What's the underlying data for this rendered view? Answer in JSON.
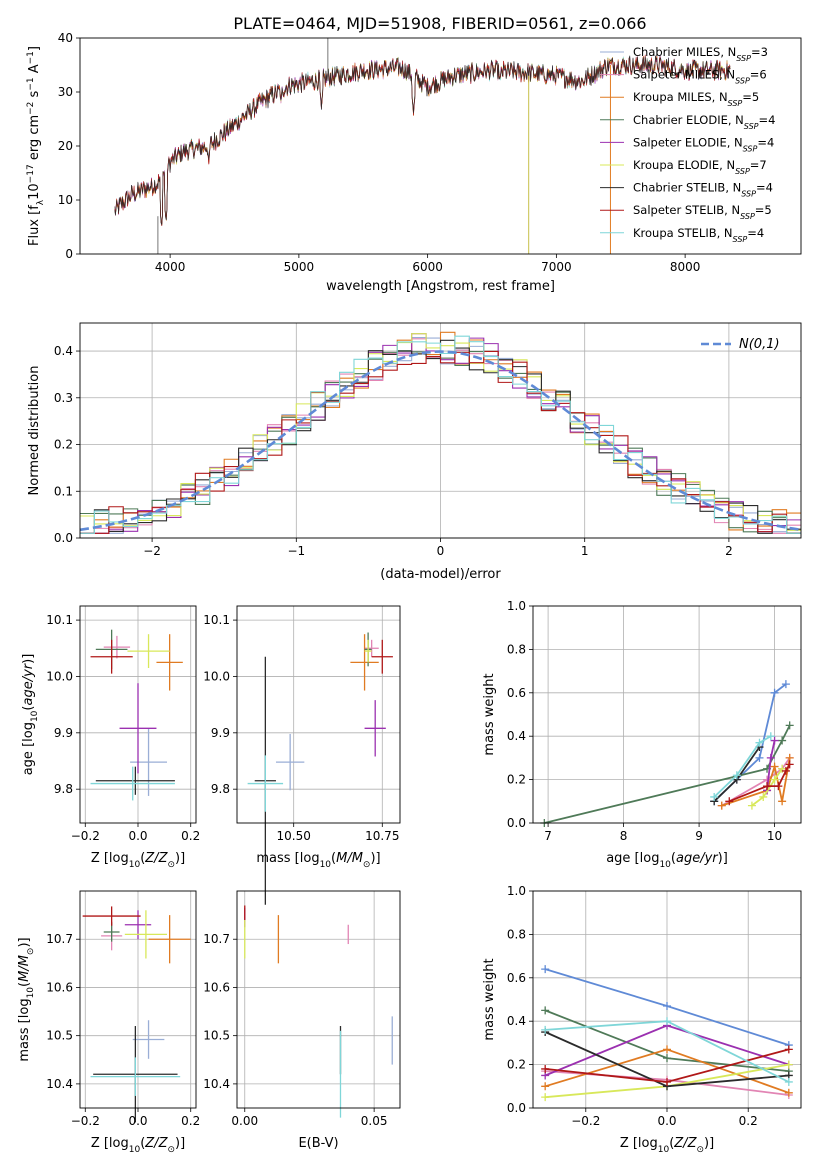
{
  "title": "PLATE=0464, MJD=51908, FIBERID=0561, z=0.066",
  "colors": {
    "Chabrier MILES": "#9aaed6",
    "Salpeter MILES": "#e285b4",
    "Kroupa MILES": "#e07b22",
    "Chabrier ELODIE": "#4f7a58",
    "Salpeter ELODIE": "#9b30b0",
    "Kroupa ELODIE": "#d8e85a",
    "Chabrier STELIB": "#2b2b2b",
    "Salpeter STELIB": "#b01818",
    "Kroupa STELIB": "#7fd6d8",
    "normal_curve": "#5f8ad6",
    "summary_line_blue": "#5f8ad6",
    "summary_line_green": "#4f7a58"
  },
  "chart_data": [
    {
      "id": "spectrum",
      "type": "line",
      "xlabel": "wavelength [Angstrom, rest frame]",
      "ylabel": "Flux [f_λ 10^-17 erg cm^-2 s^-1 A^-1]",
      "xlim": [
        3300,
        8900
      ],
      "ylim": [
        0,
        40
      ],
      "xticks": [
        4000,
        5000,
        6000,
        7000,
        8000
      ],
      "yticks": [
        0,
        10,
        20,
        30,
        40
      ],
      "legend_position": "top-right",
      "legend": [
        {
          "name": "Chabrier MILES",
          "nssp": "3"
        },
        {
          "name": "Salpeter MILES",
          "nssp": "6"
        },
        {
          "name": "Kroupa MILES",
          "nssp": "5"
        },
        {
          "name": "Chabrier ELODIE",
          "nssp": "4"
        },
        {
          "name": "Salpeter ELODIE",
          "nssp": "4"
        },
        {
          "name": "Kroupa ELODIE",
          "nssp": "7"
        },
        {
          "name": "Chabrier STELIB",
          "nssp": "4"
        },
        {
          "name": "Salpeter STELIB",
          "nssp": "5"
        },
        {
          "name": "Kroupa STELIB",
          "nssp": "4"
        }
      ],
      "continuum": {
        "x": [
          3570,
          3700,
          3900,
          4000,
          4100,
          4300,
          4500,
          4700,
          4900,
          5100,
          5300,
          5500,
          5800,
          6000,
          6200,
          6500,
          6800,
          7000,
          7200,
          7400,
          7600,
          7800,
          8000,
          8200,
          8350
        ],
        "y": [
          8,
          11,
          13,
          17,
          19,
          20,
          24,
          28,
          31,
          32,
          33,
          34,
          34.5,
          31,
          33,
          34,
          33.5,
          33,
          32,
          35,
          35,
          35,
          34,
          34,
          34
        ]
      },
      "dips": [
        {
          "x": 3933,
          "y": 5
        },
        {
          "x": 3968,
          "y": 6
        },
        {
          "x": 4300,
          "y": 17
        },
        {
          "x": 4861,
          "y": 28
        },
        {
          "x": 5175,
          "y": 27
        },
        {
          "x": 5890,
          "y": 26
        },
        {
          "x": 6563,
          "y": 32
        }
      ],
      "spikes": [
        {
          "x": 3905,
          "y_from": 7,
          "y_to": 0
        },
        {
          "x": 5225,
          "y_from": 32,
          "y_to": 40
        },
        {
          "x": 6785,
          "y_from": 33,
          "y_to": 0
        },
        {
          "x": 7420,
          "y_from": 35,
          "y_to": 0
        }
      ]
    },
    {
      "id": "residuals",
      "type": "line",
      "xlabel": "(data-model)/error",
      "ylabel": "Normed distribution",
      "xlim": [
        -2.5,
        2.5
      ],
      "ylim": [
        0,
        0.46
      ],
      "xticks": [
        -2,
        -1,
        0,
        1,
        2
      ],
      "yticks": [
        0.0,
        0.1,
        0.2,
        0.3,
        0.4
      ],
      "grid": true,
      "legend_position": "top-right",
      "normal_label": "N(0,1)",
      "bin_width": 0.1
    },
    {
      "id": "age_vs_Z",
      "type": "scatter",
      "xlabel": "Z [log10(Z/Z_sun)]",
      "ylabel": "age [log10(age/yr)]",
      "xlim": [
        -0.22,
        0.22
      ],
      "ylim": [
        9.74,
        10.125
      ],
      "xticks": [
        -0.2,
        0.0,
        0.2
      ],
      "yticks": [
        9.8,
        9.9,
        10.0,
        10.1
      ],
      "grid": true,
      "points": [
        {
          "series": "Chabrier MILES",
          "x": 0.04,
          "y": 9.848,
          "xerr": 0.07,
          "yerr": 0.06
        },
        {
          "series": "Salpeter MILES",
          "x": -0.08,
          "y": 10.052,
          "xerr": 0.05,
          "yerr": 0.02
        },
        {
          "series": "Kroupa MILES",
          "x": 0.12,
          "y": 10.025,
          "xerr": 0.05,
          "yerr": 0.05
        },
        {
          "series": "Chabrier ELODIE",
          "x": -0.1,
          "y": 10.048,
          "xerr": 0.06,
          "yerr": 0.035
        },
        {
          "series": "Salpeter ELODIE",
          "x": 0.0,
          "y": 9.908,
          "xerr": 0.07,
          "yerr": 0.08
        },
        {
          "series": "Kroupa ELODIE",
          "x": 0.04,
          "y": 10.045,
          "xerr": 0.08,
          "yerr": 0.03
        },
        {
          "series": "Chabrier STELIB",
          "x": -0.01,
          "y": 9.815,
          "xerr": 0.15,
          "yerr": 0.025
        },
        {
          "series": "Salpeter STELIB",
          "x": -0.1,
          "y": 10.035,
          "xerr": 0.08,
          "yerr": 0.03
        },
        {
          "series": "Kroupa STELIB",
          "x": -0.02,
          "y": 9.81,
          "xerr": 0.16,
          "yerr": 0.03
        }
      ]
    },
    {
      "id": "age_vs_mass",
      "type": "scatter",
      "xlabel": "mass [log10(M/M_sun)]",
      "ylabel": "",
      "xlim": [
        10.34,
        10.8
      ],
      "ylim": [
        9.74,
        10.125
      ],
      "xticks": [
        10.5,
        10.75
      ],
      "yticks": [
        9.8,
        9.9,
        10.0,
        10.1
      ],
      "grid": true,
      "points": [
        {
          "series": "Chabrier MILES",
          "x": 10.49,
          "y": 9.848,
          "xerr": 0.04,
          "yerr": 0.05
        },
        {
          "series": "Salpeter MILES",
          "x": 10.72,
          "y": 10.05,
          "xerr": 0.02,
          "yerr": 0.015
        },
        {
          "series": "Kroupa MILES",
          "x": 10.7,
          "y": 10.025,
          "xerr": 0.04,
          "yerr": 0.05
        },
        {
          "series": "Chabrier ELODIE",
          "x": 10.71,
          "y": 10.048,
          "xerr": 0.01,
          "yerr": 0.03
        },
        {
          "series": "Salpeter ELODIE",
          "x": 10.73,
          "y": 9.908,
          "xerr": 0.03,
          "yerr": 0.05
        },
        {
          "series": "Kroupa ELODIE",
          "x": 10.71,
          "y": 10.045,
          "xerr": 0.01,
          "yerr": 0.02
        },
        {
          "series": "Chabrier STELIB",
          "x": 10.42,
          "y": 9.815,
          "xerr": 0.03,
          "yerr": 0.22
        },
        {
          "series": "Salpeter STELIB",
          "x": 10.75,
          "y": 10.035,
          "xerr": 0.03,
          "yerr": 0.03
        },
        {
          "series": "Kroupa STELIB",
          "x": 10.42,
          "y": 9.81,
          "xerr": 0.05,
          "yerr": 0.05
        }
      ]
    },
    {
      "id": "weight_vs_age",
      "type": "line",
      "xlabel": "age [log10(age/yr)]",
      "ylabel": "mass weight",
      "xlim": [
        6.8,
        10.35
      ],
      "ylim": [
        0,
        1.0
      ],
      "xticks": [
        7,
        8,
        9,
        10
      ],
      "yticks": [
        0.0,
        0.2,
        0.4,
        0.6,
        0.8,
        1.0
      ],
      "grid": true,
      "series": [
        {
          "name": "Chabrier MILES",
          "color_key": "summary_line_blue",
          "x": [
            9.2,
            9.5,
            9.8,
            10.0,
            10.15
          ],
          "y": [
            0.1,
            0.2,
            0.3,
            0.6,
            0.64
          ]
        },
        {
          "name": "Chabrier ELODIE",
          "color_key": "summary_line_green",
          "x": [
            6.95,
            9.9,
            10.1,
            10.2
          ],
          "y": [
            0.0,
            0.25,
            0.38,
            0.45
          ]
        },
        {
          "name": "Salpeter MILES",
          "x": [
            9.3,
            9.9,
            10.1,
            10.2
          ],
          "y": [
            0.08,
            0.2,
            0.25,
            0.3
          ]
        },
        {
          "name": "Kroupa MILES",
          "x": [
            9.3,
            9.9,
            10.0,
            10.1,
            10.2
          ],
          "y": [
            0.08,
            0.15,
            0.26,
            0.1,
            0.3
          ]
        },
        {
          "name": "Salpeter ELODIE",
          "x": [
            9.9,
            9.95,
            10.0
          ],
          "y": [
            0.15,
            0.3,
            0.38
          ]
        },
        {
          "name": "Kroupa ELODIE",
          "x": [
            9.7,
            9.85,
            10.0,
            10.1
          ],
          "y": [
            0.08,
            0.12,
            0.2,
            0.25
          ]
        },
        {
          "name": "Chabrier STELIB",
          "x": [
            9.2,
            9.5,
            9.8
          ],
          "y": [
            0.1,
            0.2,
            0.35
          ]
        },
        {
          "name": "Salpeter STELIB",
          "x": [
            9.4,
            9.9,
            10.05,
            10.15,
            10.2
          ],
          "y": [
            0.1,
            0.17,
            0.17,
            0.24,
            0.27
          ]
        },
        {
          "name": "Kroupa STELIB",
          "x": [
            9.2,
            9.5,
            9.8,
            9.95
          ],
          "y": [
            0.12,
            0.22,
            0.37,
            0.4
          ]
        }
      ]
    },
    {
      "id": "mass_vs_Z",
      "type": "scatter",
      "xlabel": "Z [log10(Z/Z_sun)]",
      "ylabel": "mass [log10(M/M_sun)]",
      "xlim": [
        -0.22,
        0.22
      ],
      "ylim": [
        10.35,
        10.8
      ],
      "xticks": [
        -0.2,
        0.0,
        0.2
      ],
      "yticks": [
        10.4,
        10.5,
        10.6,
        10.7
      ],
      "grid": true,
      "points": [
        {
          "series": "Chabrier MILES",
          "x": 0.04,
          "y": 10.492,
          "xerr": 0.06,
          "yerr": 0.04
        },
        {
          "series": "Salpeter MILES",
          "x": -0.1,
          "y": 10.707,
          "xerr": 0.04,
          "yerr": 0.03
        },
        {
          "series": "Kroupa MILES",
          "x": 0.12,
          "y": 10.7,
          "xerr": 0.08,
          "yerr": 0.05
        },
        {
          "series": "Chabrier ELODIE",
          "x": -0.1,
          "y": 10.715,
          "xerr": 0.03,
          "yerr": 0.02
        },
        {
          "series": "Salpeter ELODIE",
          "x": 0.0,
          "y": 10.73,
          "xerr": 0.05,
          "yerr": 0.03
        },
        {
          "series": "Kroupa ELODIE",
          "x": 0.03,
          "y": 10.71,
          "xerr": 0.08,
          "yerr": 0.05
        },
        {
          "series": "Chabrier STELIB",
          "x": -0.01,
          "y": 10.42,
          "xerr": 0.16,
          "yerr": 0.1
        },
        {
          "series": "Salpeter STELIB",
          "x": -0.1,
          "y": 10.748,
          "xerr": 0.11,
          "yerr": 0.02
        },
        {
          "series": "Kroupa STELIB",
          "x": -0.01,
          "y": 10.415,
          "xerr": 0.17,
          "yerr": 0.04
        }
      ]
    },
    {
      "id": "mass_vs_ebv",
      "type": "scatter",
      "xlabel": "E(B-V)",
      "ylabel": "",
      "xlim": [
        -0.003,
        0.06
      ],
      "ylim": [
        10.35,
        10.8
      ],
      "xticks": [
        0.0,
        0.05
      ],
      "yticks": [
        10.4,
        10.5,
        10.6,
        10.7
      ],
      "grid": true,
      "points": [
        {
          "series": "Chabrier MILES",
          "x": 0.057,
          "y": 10.49,
          "xerr": 0.0,
          "yerr": 0.05
        },
        {
          "series": "Salpeter MILES",
          "x": 0.04,
          "y": 10.71,
          "xerr": 0.0,
          "yerr": 0.02
        },
        {
          "series": "Kroupa MILES",
          "x": 0.013,
          "y": 10.7,
          "xerr": 0.0,
          "yerr": 0.05
        },
        {
          "series": "Salpeter ELODIE",
          "x": 0.0,
          "y": 10.745,
          "xerr": 0.0,
          "yerr": 0.02
        },
        {
          "series": "Kroupa ELODIE",
          "x": 0.0,
          "y": 10.7,
          "xerr": 0.0,
          "yerr": 0.04
        },
        {
          "series": "Chabrier STELIB",
          "x": 0.037,
          "y": 10.47,
          "xerr": 0.0,
          "yerr": 0.05
        },
        {
          "series": "Salpeter STELIB",
          "x": 0.0,
          "y": 10.755,
          "xerr": 0.0,
          "yerr": 0.015
        },
        {
          "series": "Kroupa STELIB",
          "x": 0.037,
          "y": 10.42,
          "xerr": 0.0,
          "yerr": 0.09
        }
      ]
    },
    {
      "id": "weight_vs_Z",
      "type": "line",
      "xlabel": "Z [log10(Z/Z_sun)]",
      "ylabel": "mass weight",
      "xlim": [
        -0.33,
        0.33
      ],
      "ylim": [
        0,
        1.0
      ],
      "xticks": [
        -0.2,
        0.0,
        0.2
      ],
      "yticks": [
        0.0,
        0.2,
        0.4,
        0.6,
        0.8,
        1.0
      ],
      "grid": true,
      "series": [
        {
          "name": "Chabrier MILES",
          "color_key": "summary_line_blue",
          "x": [
            -0.3,
            0.0,
            0.3
          ],
          "y": [
            0.64,
            0.47,
            0.29
          ]
        },
        {
          "name": "Chabrier ELODIE",
          "color_key": "summary_line_green",
          "x": [
            -0.3,
            0.0,
            0.3
          ],
          "y": [
            0.45,
            0.23,
            0.17
          ]
        },
        {
          "name": "Salpeter MILES",
          "x": [
            -0.3,
            0.0,
            0.3
          ],
          "y": [
            0.17,
            0.13,
            0.06
          ]
        },
        {
          "name": "Kroupa MILES",
          "x": [
            -0.3,
            0.0,
            0.3
          ],
          "y": [
            0.1,
            0.27,
            0.07
          ]
        },
        {
          "name": "Salpeter ELODIE",
          "x": [
            -0.3,
            0.0,
            0.3
          ],
          "y": [
            0.15,
            0.38,
            0.2
          ]
        },
        {
          "name": "Kroupa ELODIE",
          "x": [
            -0.3,
            0.0,
            0.3
          ],
          "y": [
            0.05,
            0.1,
            0.2
          ]
        },
        {
          "name": "Chabrier STELIB",
          "x": [
            -0.3,
            0.0,
            0.3
          ],
          "y": [
            0.35,
            0.1,
            0.15
          ]
        },
        {
          "name": "Salpeter STELIB",
          "x": [
            -0.3,
            0.0,
            0.3
          ],
          "y": [
            0.18,
            0.12,
            0.27
          ]
        },
        {
          "name": "Kroupa STELIB",
          "x": [
            -0.3,
            0.0,
            0.3
          ],
          "y": [
            0.36,
            0.4,
            0.12
          ]
        }
      ]
    }
  ]
}
